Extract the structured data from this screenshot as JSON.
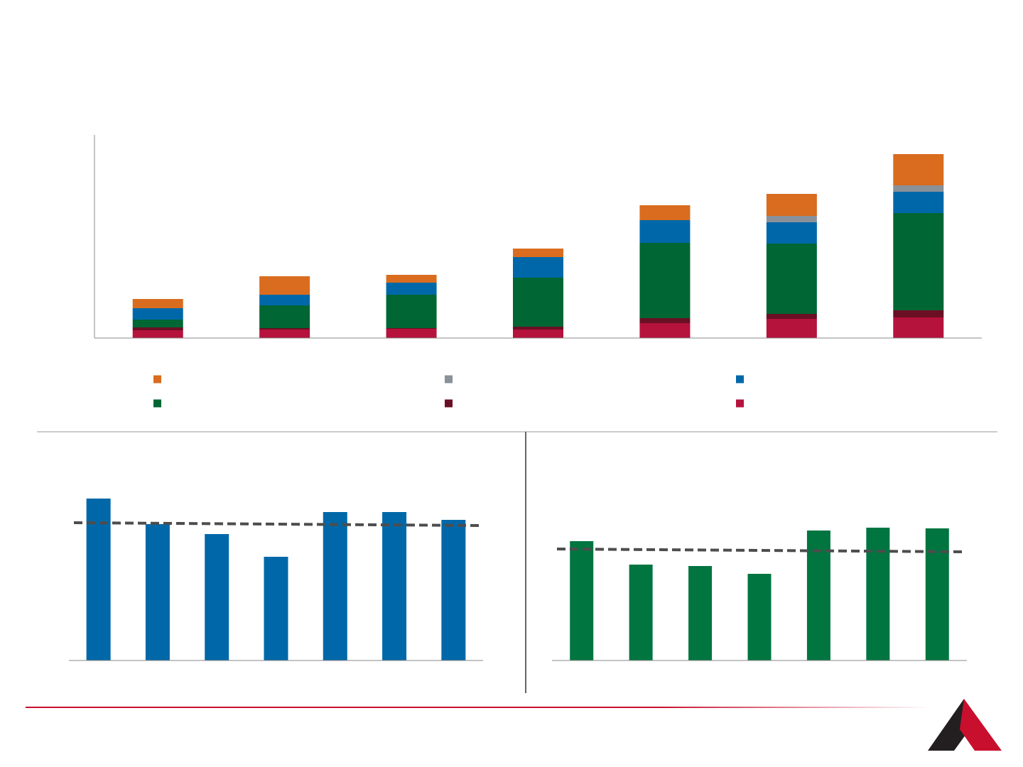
{
  "chart_data": [
    {
      "type": "stacked_bar",
      "ylim": [
        0,
        286
      ],
      "bar_width": 71,
      "series": [
        {
          "color": "#b5123c",
          "values": [
            11,
            12,
            13,
            12,
            21,
            27,
            29
          ]
        },
        {
          "color": "#6b0f24",
          "values": [
            4,
            2,
            1,
            4,
            7,
            7,
            10
          ]
        },
        {
          "color": "#006633",
          "values": [
            11,
            32,
            47,
            69,
            106,
            99,
            137
          ]
        },
        {
          "color": "#0068a8",
          "values": [
            16,
            15,
            17,
            29,
            32,
            30,
            30
          ]
        },
        {
          "color": "#8a9199",
          "values": [
            0,
            0,
            0,
            0,
            0,
            9,
            9
          ]
        },
        {
          "color": "#d96c1e",
          "values": [
            13,
            26,
            11,
            12,
            21,
            31,
            44
          ]
        }
      ]
    },
    {
      "type": "bar",
      "ylim": [
        0,
        240
      ],
      "bar_width": 34,
      "color": "#0068a8",
      "values": [
        228,
        192,
        178,
        146,
        209,
        209,
        198
      ],
      "reference_line": [
        194,
        190
      ],
      "reference_color": "#4d4d4d"
    },
    {
      "type": "bar",
      "ylim": [
        0,
        240
      ],
      "bar_width": 33,
      "color": "#007540",
      "values": [
        168,
        135,
        133,
        122,
        183,
        187,
        186
      ],
      "reference_line": [
        157,
        153
      ],
      "reference_color": "#4d4d4d"
    }
  ]
}
